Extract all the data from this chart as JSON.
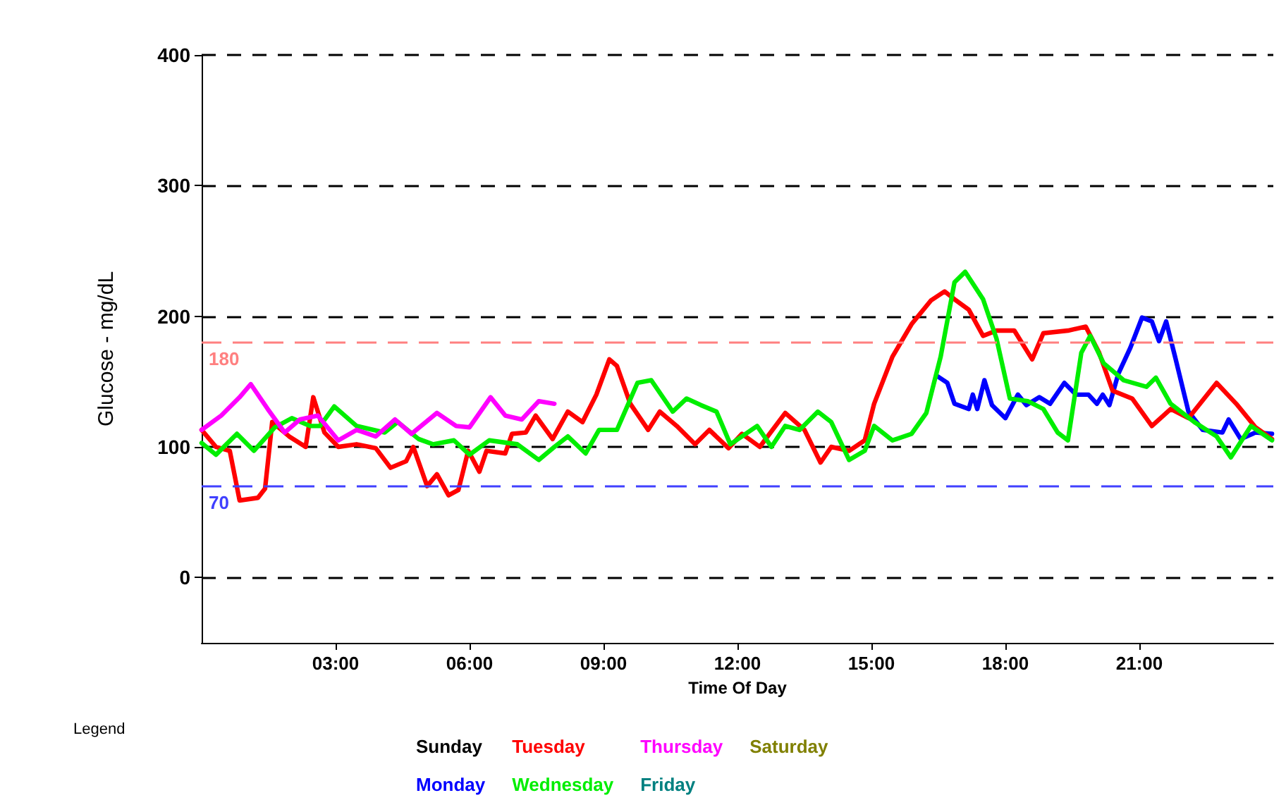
{
  "chart_data": {
    "type": "line",
    "xlabel": "Time Of Day",
    "ylabel": "Glucose - mg/dL",
    "legend_title": "Legend",
    "xlim": [
      0,
      24
    ],
    "xticks": [
      {
        "value": 3,
        "label": "03:00"
      },
      {
        "value": 6,
        "label": "06:00"
      },
      {
        "value": 9,
        "label": "09:00"
      },
      {
        "value": 12,
        "label": "12:00"
      },
      {
        "value": 15,
        "label": "15:00"
      },
      {
        "value": 18,
        "label": "18:00"
      },
      {
        "value": 21,
        "label": "21:00"
      }
    ],
    "ylim": [
      -50,
      400
    ],
    "yticks": [
      0,
      100,
      200,
      300,
      400
    ],
    "grid": "y",
    "legend": "bottom",
    "marker": "none",
    "line_style": "solid",
    "ref_lines": [
      {
        "axis": "y",
        "value": 180,
        "label": "180",
        "color": "#ff8080",
        "line_style": "dashed"
      },
      {
        "axis": "y",
        "value": 70,
        "label": "70",
        "color": "#4040ff",
        "line_style": "dashed"
      }
    ],
    "series": [
      {
        "name": "Sunday",
        "color": "#000000"
      },
      {
        "name": "Monday",
        "color": "#0000ff",
        "x": [
          16.48,
          16.7,
          16.86,
          17.18,
          17.27,
          17.37,
          17.53,
          17.7,
          18.0,
          18.28,
          18.47,
          18.76,
          19.0,
          19.32,
          19.58,
          19.86,
          20.05,
          20.18,
          20.33,
          20.53,
          20.8,
          21.06,
          21.28,
          21.44,
          21.6,
          21.8,
          22.1,
          22.42,
          22.86,
          23.0,
          23.27,
          23.6,
          23.97
        ],
        "values": [
          154,
          149,
          133,
          129,
          140,
          129,
          151,
          132,
          122,
          140,
          132,
          138,
          133,
          149,
          140,
          140,
          133,
          140,
          132,
          156,
          176,
          199,
          196,
          181,
          196,
          169,
          127,
          113,
          111,
          121,
          106,
          111,
          110
        ]
      },
      {
        "name": "Tuesday",
        "color": "#ff0000",
        "x": [
          0,
          0.32,
          0.63,
          0.85,
          1.26,
          1.42,
          1.58,
          1.96,
          2.33,
          2.5,
          2.75,
          3.06,
          3.47,
          3.9,
          4.23,
          4.58,
          4.74,
          5.05,
          5.27,
          5.53,
          5.75,
          5.97,
          6.22,
          6.38,
          6.8,
          6.95,
          7.26,
          7.48,
          7.86,
          8.2,
          8.53,
          8.84,
          9.13,
          9.3,
          9.6,
          10.0,
          10.26,
          10.64,
          11.05,
          11.37,
          11.8,
          12.1,
          12.5,
          13.07,
          13.5,
          13.86,
          14.1,
          14.5,
          14.85,
          15.06,
          15.47,
          15.9,
          16.33,
          16.64,
          16.86,
          17.18,
          17.5,
          17.8,
          18.2,
          18.6,
          18.85,
          19.4,
          19.8,
          20.1,
          20.4,
          20.84,
          21.28,
          21.7,
          22.1,
          22.73,
          23.17,
          23.6,
          23.97
        ],
        "values": [
          113,
          100,
          97,
          59,
          61,
          68,
          119,
          108,
          100,
          138,
          111,
          100,
          102,
          99,
          84,
          89,
          100,
          70,
          79,
          63,
          67,
          97,
          81,
          97,
          95,
          110,
          111,
          124,
          106,
          127,
          119,
          140,
          167,
          162,
          133,
          113,
          127,
          116,
          102,
          113,
          99,
          110,
          100,
          126,
          113,
          88,
          100,
          97,
          105,
          133,
          169,
          194,
          212,
          219,
          213,
          205,
          185,
          189,
          189,
          167,
          187,
          189,
          192,
          172,
          143,
          137,
          116,
          129,
          122,
          149,
          133,
          115,
          106
        ]
      },
      {
        "name": "Wednesday",
        "color": "#00ee00",
        "x": [
          0,
          0.32,
          0.79,
          1.17,
          1.64,
          2.02,
          2.43,
          2.65,
          2.97,
          3.47,
          4.1,
          4.39,
          4.86,
          5.18,
          5.65,
          6.0,
          6.44,
          7.07,
          7.55,
          7.9,
          8.2,
          8.6,
          8.9,
          9.3,
          9.76,
          10.07,
          10.55,
          10.86,
          11.18,
          11.53,
          11.84,
          12.44,
          12.76,
          13.07,
          13.39,
          13.8,
          14.1,
          14.5,
          14.85,
          15.06,
          15.47,
          15.9,
          16.23,
          16.55,
          16.86,
          17.1,
          17.5,
          17.8,
          18.1,
          18.5,
          18.85,
          19.17,
          19.4,
          19.7,
          19.9,
          20.2,
          20.65,
          21.16,
          21.37,
          21.7,
          22.23,
          22.73,
          23.05,
          23.5,
          23.97
        ],
        "values": [
          103,
          94,
          110,
          97,
          115,
          122,
          116,
          116,
          131,
          116,
          111,
          119,
          106,
          102,
          105,
          94,
          105,
          102,
          90,
          100,
          108,
          95,
          113,
          113,
          149,
          151,
          127,
          137,
          132,
          127,
          102,
          116,
          100,
          116,
          113,
          127,
          119,
          90,
          97,
          116,
          105,
          110,
          126,
          169,
          226,
          234,
          213,
          183,
          137,
          135,
          129,
          111,
          105,
          172,
          185,
          164,
          151,
          146,
          153,
          133,
          119,
          108,
          92,
          116,
          105
        ]
      },
      {
        "name": "Thursday",
        "color": "#ff00ff",
        "x": [
          0,
          0.44,
          0.85,
          1.1,
          1.48,
          1.86,
          2.2,
          2.6,
          3.06,
          3.47,
          3.9,
          4.33,
          4.7,
          5.27,
          5.7,
          6.0,
          6.47,
          6.8,
          7.17,
          7.55,
          7.9
        ],
        "values": [
          113,
          124,
          138,
          148,
          129,
          111,
          121,
          124,
          105,
          113,
          108,
          121,
          110,
          126,
          116,
          115,
          138,
          124,
          121,
          135,
          133
        ]
      },
      {
        "name": "Friday",
        "color": "#008080"
      },
      {
        "name": "Saturday",
        "color": "#808000"
      }
    ]
  }
}
